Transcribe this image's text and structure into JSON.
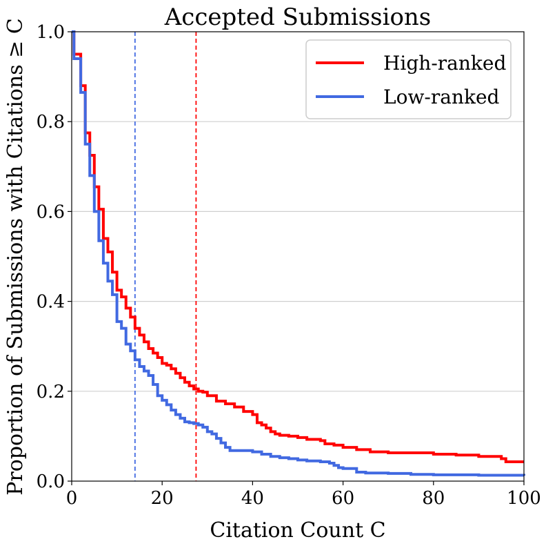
{
  "chart_data": {
    "type": "line",
    "title": "Accepted Submissions",
    "xlabel": "Citation Count C",
    "ylabel": "Proportion of Submissions with Citations ≥ C",
    "xlim": [
      0,
      100
    ],
    "ylim": [
      0,
      1.0
    ],
    "xticks": [
      0,
      20,
      40,
      60,
      80,
      100
    ],
    "yticks": [
      0.0,
      0.2,
      0.4,
      0.6,
      0.8,
      1.0
    ],
    "xtick_labels": [
      "0",
      "20",
      "40",
      "60",
      "80",
      "100"
    ],
    "ytick_labels": [
      "0.0",
      "0.2",
      "0.4",
      "0.6",
      "0.8",
      "1.0"
    ],
    "grid": "horizontal",
    "legend_position": "top-right",
    "series": [
      {
        "name": "High-ranked",
        "color": "#ff0000",
        "step": true,
        "x": [
          0,
          0.5,
          1,
          2,
          3,
          4,
          5,
          6,
          7,
          8,
          9,
          10,
          11,
          12,
          13,
          14,
          15,
          16,
          17,
          18,
          19,
          20,
          21,
          22,
          23,
          24,
          25,
          26,
          27,
          28,
          29,
          30,
          32,
          34,
          36,
          38,
          40,
          41,
          42,
          43,
          44,
          45,
          46,
          48,
          50,
          52,
          55,
          56,
          58,
          60,
          63,
          66,
          70,
          80,
          85,
          90,
          95,
          96,
          100
        ],
        "y": [
          1.0,
          0.95,
          0.95,
          0.88,
          0.775,
          0.725,
          0.655,
          0.605,
          0.54,
          0.51,
          0.465,
          0.425,
          0.41,
          0.385,
          0.365,
          0.34,
          0.325,
          0.31,
          0.295,
          0.285,
          0.275,
          0.262,
          0.258,
          0.25,
          0.24,
          0.23,
          0.22,
          0.212,
          0.205,
          0.2,
          0.198,
          0.19,
          0.178,
          0.172,
          0.165,
          0.155,
          0.148,
          0.13,
          0.125,
          0.118,
          0.11,
          0.105,
          0.102,
          0.1,
          0.097,
          0.093,
          0.09,
          0.083,
          0.08,
          0.075,
          0.07,
          0.065,
          0.063,
          0.06,
          0.058,
          0.055,
          0.05,
          0.043,
          0.043
        ]
      },
      {
        "name": "Low-ranked",
        "color": "#4169e1",
        "step": true,
        "x": [
          0,
          0.5,
          1,
          2,
          3,
          4,
          5,
          6,
          7,
          8,
          9,
          10,
          11,
          12,
          13,
          14,
          15,
          16,
          17,
          18,
          19,
          20,
          21,
          22,
          23,
          24,
          25,
          26,
          27,
          28,
          29,
          30,
          31,
          32,
          33,
          34,
          35,
          40,
          42,
          44,
          46,
          48,
          50,
          52,
          55,
          57,
          58,
          59,
          60,
          63,
          65,
          70,
          75,
          80,
          90,
          100
        ],
        "y": [
          1.0,
          0.94,
          0.94,
          0.865,
          0.75,
          0.68,
          0.6,
          0.535,
          0.485,
          0.445,
          0.415,
          0.355,
          0.34,
          0.305,
          0.29,
          0.27,
          0.255,
          0.245,
          0.235,
          0.215,
          0.19,
          0.18,
          0.17,
          0.158,
          0.148,
          0.14,
          0.132,
          0.13,
          0.128,
          0.125,
          0.12,
          0.11,
          0.105,
          0.095,
          0.085,
          0.075,
          0.068,
          0.065,
          0.06,
          0.055,
          0.052,
          0.05,
          0.047,
          0.045,
          0.043,
          0.04,
          0.035,
          0.03,
          0.028,
          0.02,
          0.018,
          0.017,
          0.015,
          0.014,
          0.013,
          0.012
        ]
      }
    ],
    "reference_lines": [
      {
        "axis": "x",
        "value": 14,
        "color": "#4169e1",
        "style": "dashed"
      },
      {
        "axis": "x",
        "value": 27.5,
        "color": "#ff0000",
        "style": "dashed"
      }
    ]
  }
}
